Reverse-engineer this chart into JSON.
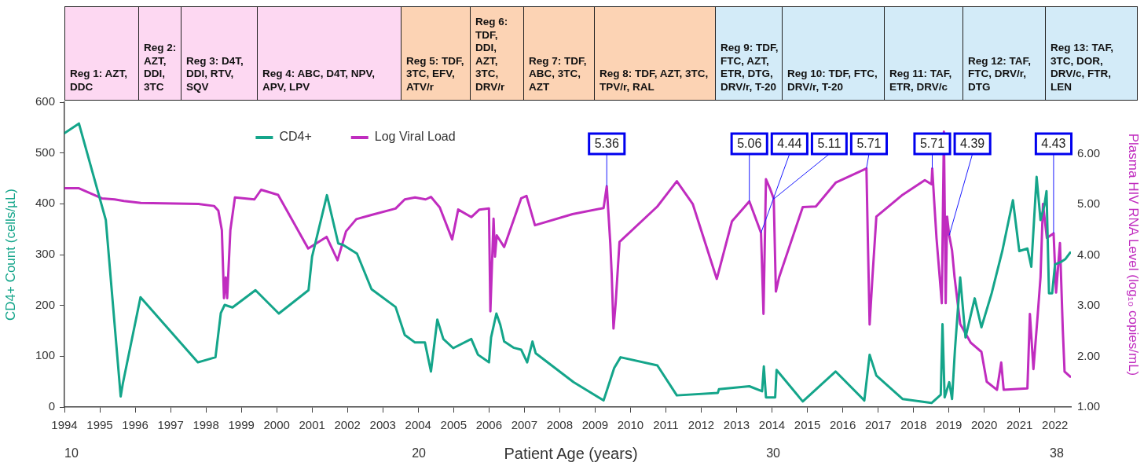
{
  "chart_data": {
    "type": "line",
    "xlabel": null,
    "x2label": "Patient Age (years)",
    "ylabel": "CD4+ Count (cells/µL)",
    "y2label": "Plasma HIV RNA Level (log₁₀ copies/mL)",
    "xlim": [
      1994,
      2022.45
    ],
    "xticks": [
      1994,
      1995,
      1996,
      1997,
      1998,
      1999,
      2000,
      2001,
      2002,
      2003,
      2004,
      2005,
      2006,
      2007,
      2008,
      2009,
      2010,
      2011,
      2012,
      2013,
      2014,
      2015,
      2016,
      2017,
      2018,
      2019,
      2020,
      2021,
      2022
    ],
    "x2lim": [
      10,
      38.4
    ],
    "x2ticks": [
      10,
      20,
      30,
      38
    ],
    "ylim": [
      0,
      600
    ],
    "yticks": [
      0,
      100,
      200,
      300,
      400,
      500,
      600
    ],
    "y2lim": [
      1,
      7.02
    ],
    "y2ticks": [
      {
        "value": 1,
        "label": "1.00"
      },
      {
        "value": 2,
        "label": "2.00"
      },
      {
        "value": 3,
        "label": "3.00"
      },
      {
        "value": 4,
        "label": "4.00"
      },
      {
        "value": 5,
        "label": "5.00"
      },
      {
        "value": 6,
        "label": "6.00"
      }
    ],
    "grid": false,
    "legend": "top left",
    "marker": "none",
    "line_style": "solid",
    "series": [
      {
        "name": "CD4+",
        "color": "#14a58a",
        "axis": "y",
        "x": [
          1994.0,
          1994.41,
          1995.17,
          1995.59,
          1995.65,
          1996.15,
          1997.77,
          1998.27,
          1998.42,
          1998.53,
          1998.75,
          1999.4,
          2000.06,
          2000.9,
          2001.0,
          2001.42,
          2001.74,
          2001.88,
          2002.27,
          2002.68,
          2003.36,
          2003.62,
          2003.91,
          2004.19,
          2004.36,
          2004.54,
          2004.71,
          2004.99,
          2005.5,
          2005.69,
          2006.0,
          2006.06,
          2006.21,
          2006.32,
          2006.43,
          2006.69,
          2006.91,
          2007.08,
          2007.23,
          2007.32,
          2008.39,
          2009.24,
          2009.54,
          2009.72,
          2010.76,
          2011.31,
          2012.47,
          2012.5,
          2013.36,
          2013.72,
          2013.77,
          2013.83,
          2014.09,
          2014.13,
          2014.87,
          2015.8,
          2016.61,
          2016.76,
          2016.95,
          2017.69,
          2018.51,
          2018.77,
          2018.82,
          2018.88,
          2019.01,
          2019.09,
          2019.17,
          2019.32,
          2019.47,
          2019.73,
          2019.92,
          2020.21,
          2020.51,
          2020.81,
          2020.99,
          2021.22,
          2021.33,
          2021.48,
          2021.59,
          2021.7,
          2021.76,
          2021.83,
          2021.92,
          2022.0,
          2022.18,
          2022.29,
          2022.43
        ],
        "values": [
          539,
          558,
          368,
          21,
          46,
          216,
          88,
          98,
          185,
          201,
          196,
          230,
          184,
          230,
          296,
          417,
          322,
          319,
          302,
          232,
          197,
          142,
          127,
          127,
          70,
          172,
          134,
          116,
          134,
          103,
          88,
          137,
          184,
          162,
          129,
          117,
          113,
          88,
          129,
          106,
          49,
          13,
          77,
          98,
          82,
          23,
          28,
          35,
          41,
          31,
          80,
          19,
          19,
          73,
          11,
          70,
          13,
          103,
          62,
          16,
          8,
          24,
          163,
          19,
          49,
          16,
          111,
          255,
          137,
          214,
          157,
          224,
          307,
          407,
          307,
          312,
          276,
          453,
          368,
          397,
          425,
          224,
          224,
          281,
          286,
          291,
          304
        ]
      },
      {
        "name": "Log Viral Load",
        "color": "#c02cbf",
        "axis": "y2",
        "x": [
          1994.0,
          1994.41,
          1995.06,
          1995.42,
          1995.68,
          1996.16,
          1997.79,
          1998.23,
          1998.35,
          1998.45,
          1998.51,
          1998.56,
          1998.6,
          1998.69,
          1998.82,
          1999.37,
          1999.56,
          2000.04,
          2000.89,
          2001.41,
          2001.72,
          2001.96,
          2002.25,
          2002.66,
          2003.36,
          2003.62,
          2003.91,
          2004.21,
          2004.36,
          2004.61,
          2004.96,
          2005.13,
          2005.5,
          2005.73,
          2006.0,
          2006.04,
          2006.13,
          2006.17,
          2006.22,
          2006.43,
          2006.91,
          2007.06,
          2007.3,
          2008.36,
          2009.24,
          2009.33,
          2009.37,
          2009.43,
          2009.47,
          2009.52,
          2009.58,
          2009.69,
          2010.76,
          2011.31,
          2011.76,
          2012.44,
          2012.87,
          2013.36,
          2013.69,
          2013.76,
          2013.83,
          2013.94,
          2014.05,
          2014.11,
          2014.2,
          2014.87,
          2015.24,
          2015.8,
          2016.67,
          2016.71,
          2016.76,
          2016.84,
          2016.95,
          2017.69,
          2018.32,
          2018.51,
          2018.53,
          2018.58,
          2018.65,
          2018.74,
          2018.8,
          2018.86,
          2018.91,
          2018.95,
          2019.01,
          2019.09,
          2019.16,
          2019.32,
          2019.62,
          2019.92,
          2020.07,
          2020.36,
          2020.48,
          2020.55,
          2021.22,
          2021.29,
          2021.39,
          2021.51,
          2021.59,
          2021.66,
          2021.77,
          2021.96,
          2022.03,
          2022.14,
          2022.22,
          2022.27,
          2022.43
        ],
        "values": [
          5.32,
          5.32,
          5.12,
          5.1,
          5.07,
          5.03,
          5.01,
          4.97,
          4.88,
          4.49,
          3.15,
          3.56,
          3.15,
          4.49,
          5.14,
          5.1,
          5.29,
          5.19,
          4.13,
          4.36,
          3.9,
          4.47,
          4.71,
          4.79,
          4.92,
          5.1,
          5.14,
          5.1,
          5.15,
          4.94,
          4.31,
          4.9,
          4.75,
          4.9,
          4.92,
          2.89,
          4.72,
          3.97,
          4.39,
          4.16,
          5.12,
          5.17,
          4.59,
          4.81,
          4.93,
          5.36,
          4.9,
          4.23,
          3.61,
          2.55,
          3.04,
          4.26,
          4.96,
          5.46,
          5.01,
          3.53,
          4.67,
          5.06,
          4.44,
          2.84,
          5.5,
          5.32,
          5.11,
          3.28,
          3.56,
          4.95,
          4.96,
          5.43,
          5.71,
          4.29,
          2.63,
          3.57,
          4.76,
          5.19,
          5.48,
          5.4,
          5.71,
          5.12,
          4.34,
          3.57,
          3.05,
          6.44,
          3.05,
          4.76,
          4.39,
          4.09,
          3.57,
          2.64,
          2.27,
          2.09,
          1.5,
          1.34,
          1.88,
          1.34,
          1.37,
          2.84,
          1.75,
          2.81,
          3.56,
          5.01,
          4.34,
          4.43,
          3.26,
          4.24,
          2.53,
          1.7,
          1.6
        ]
      }
    ],
    "annotations": [
      "Reg 1: AZT, DDC",
      "Reg 2: AZT, DDI, 3TC",
      "Reg 3: D4T, DDI, RTV, SQV",
      "Reg 4: ABC, D4T, NPV, APV, LPV",
      "Reg 5: TDF, 3TC, EFV, ATV/r",
      "Reg 6: TDF, DDI, AZT, 3TC, DRV/r",
      "Reg 7: TDF, ABC, 3TC, AZT",
      "Reg 8: TDF, AZT, 3TC, TPV/r, RAL",
      "Reg 9: TDF, FTC, AZT, ETR, DTG, DRV/r, T-20",
      "Reg 10: TDF, FTC, DRV/r, T-20",
      "Reg 11: TAF, ETR, DRV/c",
      "Reg 12: TAF, FTC, DRV/r, DTG",
      "Reg 13: TAF, 3TC, DOR, DRV/c, FTR, LEN",
      {
        "text": "5.36",
        "x": 2009.33,
        "y": 434.6
      },
      {
        "text": "5.06",
        "x": 2013.36,
        "y": 404.7
      },
      {
        "text": "4.44",
        "x": 2013.69,
        "y": 342.9
      },
      {
        "text": "5.11",
        "x": 2014.05,
        "y": 409.6
      },
      {
        "text": "5.71",
        "x": 2016.67,
        "y": 469.4
      },
      {
        "text": "5.71",
        "x": 2018.53,
        "y": 469.4
      },
      {
        "text": "4.39",
        "x": 2019.01,
        "y": 337.9
      },
      {
        "text": "4.43",
        "x": 2021.96,
        "y": 341.9
      }
    ]
  }
}
